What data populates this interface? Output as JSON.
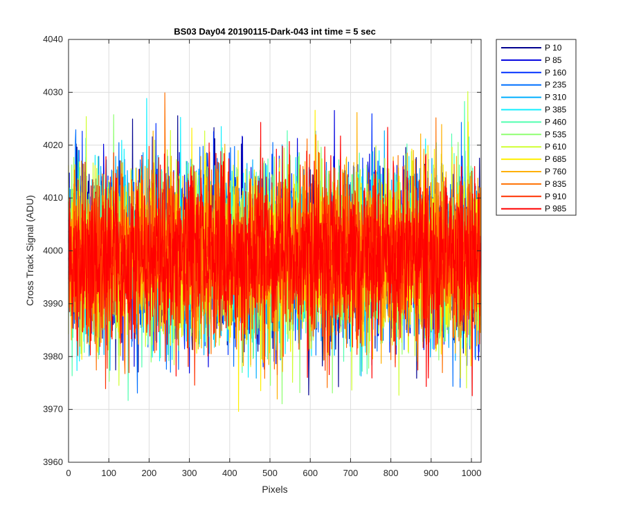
{
  "chart_data": {
    "type": "line",
    "title": "BS03 Day04 20190115-Dark-043 int time = 5 sec",
    "xlabel": "Pixels",
    "ylabel": "Cross Track Signal (ADU)",
    "xlim": [
      0,
      1024
    ],
    "ylim": [
      3960,
      4040
    ],
    "xticks": [
      0,
      100,
      200,
      300,
      400,
      500,
      600,
      700,
      800,
      900,
      1000
    ],
    "yticks": [
      3960,
      3970,
      3980,
      3990,
      4000,
      4010,
      4020,
      4030,
      4040
    ],
    "grid": true,
    "legend_position": "outside-right-top",
    "noise": {
      "mean": 3999,
      "std": 8,
      "min": 3965,
      "max": 4038,
      "points_per_series": 1024
    },
    "series": [
      {
        "name": "P 10",
        "color": "#00008F"
      },
      {
        "name": "P 85",
        "color": "#0000DF"
      },
      {
        "name": "P 160",
        "color": "#0030FF"
      },
      {
        "name": "P 235",
        "color": "#0070FF"
      },
      {
        "name": "P 310",
        "color": "#00AFFF"
      },
      {
        "name": "P 385",
        "color": "#0FEFFF"
      },
      {
        "name": "P 460",
        "color": "#50FFAF"
      },
      {
        "name": "P 535",
        "color": "#8FFF70"
      },
      {
        "name": "P 610",
        "color": "#CFFF30"
      },
      {
        "name": "P 685",
        "color": "#FFEF00"
      },
      {
        "name": "P 760",
        "color": "#FFAF00"
      },
      {
        "name": "P 835",
        "color": "#FF7000"
      },
      {
        "name": "P 910",
        "color": "#FF3000"
      },
      {
        "name": "P 985",
        "color": "#FF0000"
      }
    ]
  }
}
